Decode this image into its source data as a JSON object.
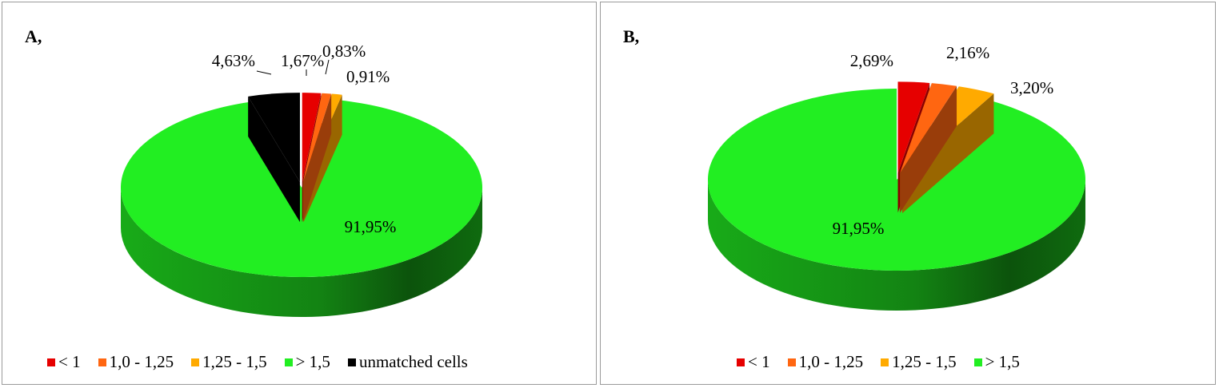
{
  "chart_data": [
    {
      "type": "pie",
      "panel_label": "A,",
      "title": "",
      "categories": [
        "< 1",
        "1,0 - 1,25",
        "1,25 - 1,5",
        "> 1,5",
        "unmatched cells"
      ],
      "values": [
        1.67,
        0.83,
        0.91,
        91.95,
        4.63
      ],
      "labels": [
        "1,67%",
        "0,83%",
        "0,91%",
        "91,95%",
        "4,63%"
      ],
      "exploded": [
        true,
        true,
        true,
        false,
        true
      ],
      "colors": [
        "#e60000",
        "#ff6611",
        "#ffaa00",
        "#22ee22",
        "#000000"
      ],
      "legend_position": "bottom",
      "style": "3d-exploded"
    },
    {
      "type": "pie",
      "panel_label": "B,",
      "title": "",
      "categories": [
        "< 1",
        "1,0 - 1,25",
        "1,25 - 1,5",
        "> 1,5"
      ],
      "values": [
        2.69,
        2.16,
        3.2,
        91.95
      ],
      "labels": [
        "2,69%",
        "2,16%",
        "3,20%",
        "91,95%"
      ],
      "exploded": [
        true,
        true,
        true,
        false
      ],
      "colors": [
        "#e60000",
        "#ff6611",
        "#ffaa00",
        "#22ee22"
      ],
      "legend_position": "bottom",
      "style": "3d-exploded"
    }
  ]
}
